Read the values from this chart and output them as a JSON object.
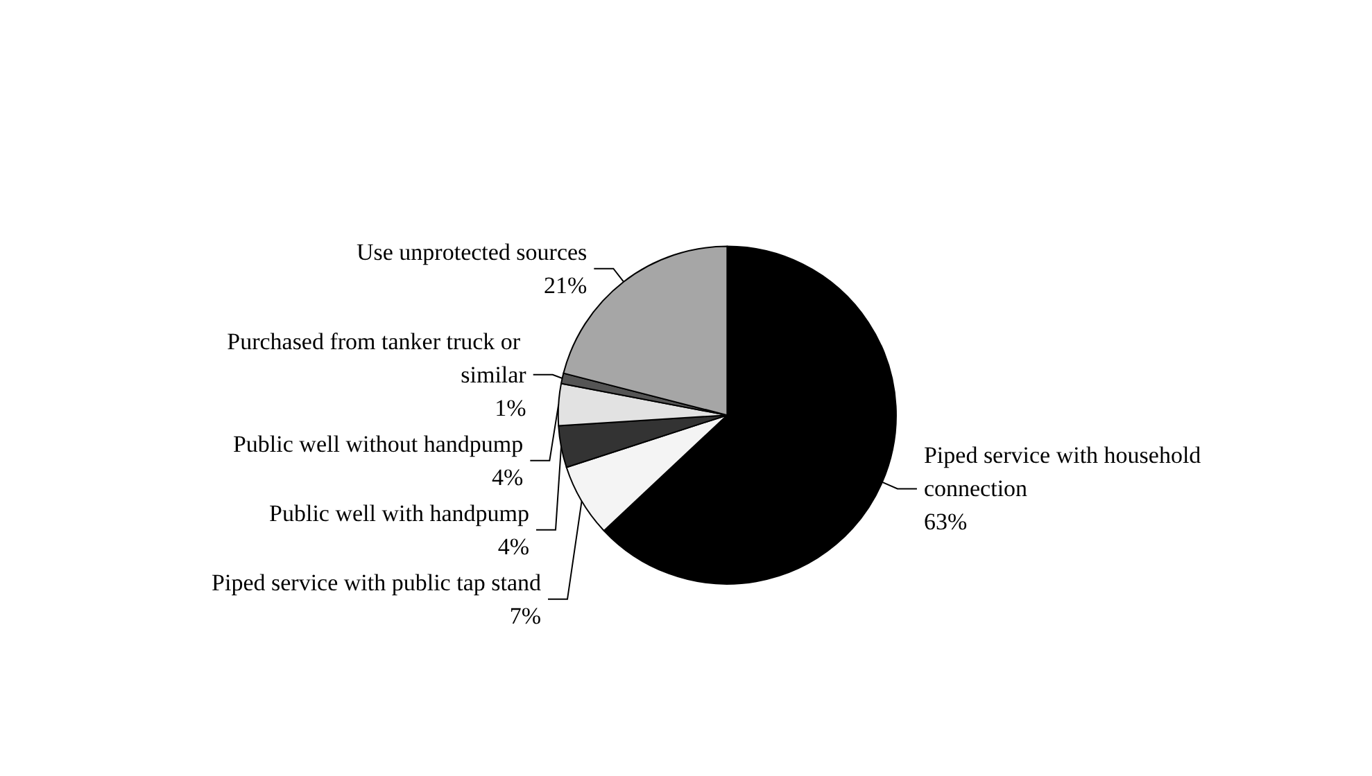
{
  "chart_data": {
    "type": "pie",
    "categories": [
      "Piped service with household connection",
      "Piped service with public tap stand",
      "Public well with handpump",
      "Public well without handpump",
      "Purchased from tanker truck or similar",
      "Use unprotected sources"
    ],
    "values": [
      63,
      7,
      4,
      4,
      1,
      21
    ],
    "value_labels": [
      "63%",
      "7%",
      "4%",
      "4%",
      "1%",
      "21%"
    ],
    "colors": [
      "#000000",
      "#f4f4f4",
      "#333333",
      "#e2e2e2",
      "#555555",
      "#a6a6a6"
    ],
    "legend": false
  }
}
